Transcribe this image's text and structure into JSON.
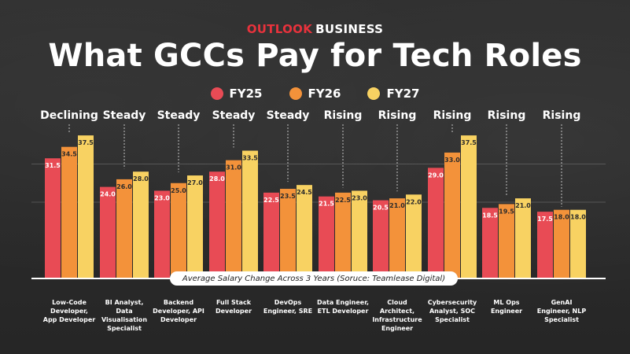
{
  "brand": {
    "part1": "OUTLOOK",
    "part2": "BUSINESS"
  },
  "title": "What GCCs Pay for Tech Roles",
  "subtitle": "Average Salary Change Across 3 Years (Soruce: Teamlease Digital)",
  "colors": {
    "FY25": "#e84b55",
    "FY26": "#f3923a",
    "FY27": "#f8d262"
  },
  "chart_data": {
    "type": "bar",
    "title": "What GCCs Pay for Tech Roles",
    "xlabel": "",
    "ylabel": "",
    "legend_position": "top-center",
    "grid": true,
    "ylim": [
      0,
      40
    ],
    "categories": [
      [
        "Low-Code",
        "Developer,",
        "App Developer"
      ],
      [
        "BI Analyst,",
        "Data",
        "Visualisation",
        "Specialist"
      ],
      [
        "Backend",
        "Developer, API",
        "Developer"
      ],
      [
        "Full Stack",
        "Developer"
      ],
      [
        "DevOps",
        "Engineer, SRE"
      ],
      [
        "Data Engineer,",
        "ETL Developer"
      ],
      [
        "Cloud",
        "Architect,",
        "Infrastructure",
        "Engineer"
      ],
      [
        "Cybersecurity",
        "Analyst, SOC",
        "Specialist"
      ],
      [
        "ML Ops",
        "Engineer"
      ],
      [
        "GenAI",
        "Engineer, NLP",
        "Specialist"
      ]
    ],
    "trends": [
      "Declining",
      "Steady",
      "Steady",
      "Steady",
      "Steady",
      "Rising",
      "Rising",
      "Rising",
      "Rising",
      "Rising"
    ],
    "series": [
      {
        "name": "FY25",
        "values": [
          31.5,
          24.0,
          23.0,
          28.0,
          22.5,
          21.5,
          20.5,
          29.0,
          18.5,
          17.5
        ],
        "labels": [
          "31.5",
          "24.0",
          "23.0",
          "28.0",
          "22.5",
          "21.5",
          "20.5",
          "29.0",
          "18.5",
          "17.5"
        ]
      },
      {
        "name": "FY26",
        "values": [
          34.5,
          26.0,
          25.0,
          31.0,
          23.5,
          22.5,
          21.0,
          33.0,
          19.5,
          18.0
        ],
        "labels": [
          "34.5",
          "26.0",
          "25.0",
          "31.0",
          "23.5",
          "22.5",
          "21.0",
          "33.0",
          "19.5",
          "18.0"
        ]
      },
      {
        "name": "FY27",
        "values": [
          37.5,
          28.0,
          27.0,
          33.5,
          24.5,
          23.0,
          22.0,
          37.5,
          21.0,
          18.0
        ],
        "labels": [
          "37.5",
          "28.0",
          "27.0",
          "33.5",
          "24.5",
          "23.0",
          "22.0",
          "37.5",
          "21.0",
          "18.0"
        ]
      }
    ]
  }
}
